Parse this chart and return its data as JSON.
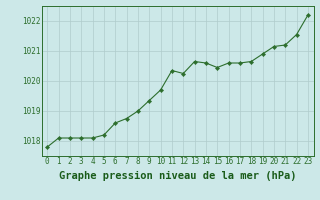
{
  "x": [
    0,
    1,
    2,
    3,
    4,
    5,
    6,
    7,
    8,
    9,
    10,
    11,
    12,
    13,
    14,
    15,
    16,
    17,
    18,
    19,
    20,
    21,
    22,
    23
  ],
  "y": [
    1017.8,
    1018.1,
    1018.1,
    1018.1,
    1018.1,
    1018.2,
    1018.6,
    1018.75,
    1019.0,
    1019.35,
    1019.7,
    1020.35,
    1020.25,
    1020.65,
    1020.6,
    1020.45,
    1020.6,
    1020.6,
    1020.65,
    1020.9,
    1021.15,
    1021.2,
    1021.55,
    1022.2
  ],
  "line_color": "#2d6e2d",
  "marker_color": "#2d6e2d",
  "bg_color": "#cce8e8",
  "grid_color": "#b0cccc",
  "axis_color": "#2d6e2d",
  "title": "Graphe pression niveau de la mer (hPa)",
  "title_color": "#1a5c1a",
  "ylim": [
    1017.5,
    1022.5
  ],
  "yticks": [
    1018,
    1019,
    1020,
    1021,
    1022
  ],
  "xlim": [
    -0.5,
    23.5
  ],
  "xticks": [
    0,
    1,
    2,
    3,
    4,
    5,
    6,
    7,
    8,
    9,
    10,
    11,
    12,
    13,
    14,
    15,
    16,
    17,
    18,
    19,
    20,
    21,
    22,
    23
  ],
  "tick_fontsize": 5.5,
  "title_fontsize": 7.5
}
